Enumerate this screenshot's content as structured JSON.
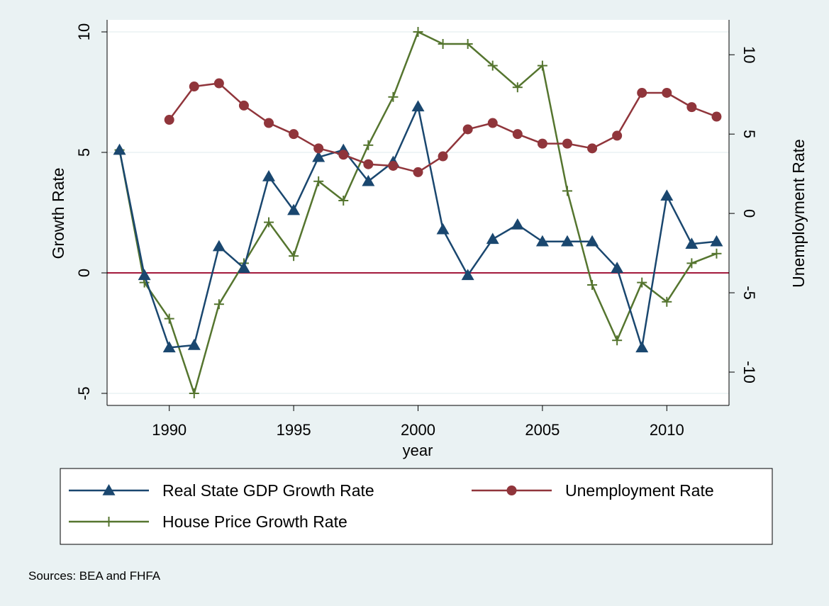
{
  "chart_data": {
    "type": "line",
    "xlabel": "year",
    "ylabel_left": "Growth Rate",
    "ylabel_right": "Unemployment Rate",
    "xlim": [
      1987.5,
      2012.5
    ],
    "ylim_left": [
      -5.5,
      10.5
    ],
    "ylim_right": [
      -12.1,
      12.2
    ],
    "x_ticks": [
      1990,
      1995,
      2000,
      2005,
      2010
    ],
    "y_ticks_left": [
      -5,
      0,
      5,
      10
    ],
    "y_ticks_right": [
      -10,
      -5,
      0,
      5,
      10
    ],
    "grid": true,
    "reference_line_y": 0,
    "legend_position": "bottom",
    "note": "Sources: BEA and FHFA",
    "series": [
      {
        "name": "Real State GDP Growth Rate",
        "axis": "left",
        "marker": "triangle",
        "color": "#1a476f",
        "x": [
          1988,
          1989,
          1990,
          1991,
          1992,
          1993,
          1994,
          1995,
          1996,
          1997,
          1998,
          1999,
          2000,
          2001,
          2002,
          2003,
          2004,
          2005,
          2006,
          2007,
          2008,
          2009,
          2010,
          2011,
          2012
        ],
        "values": [
          5.1,
          -0.1,
          -3.1,
          -3.0,
          1.1,
          0.2,
          4.0,
          2.6,
          4.8,
          5.1,
          3.8,
          4.6,
          6.9,
          1.8,
          -0.1,
          1.4,
          2.0,
          1.3,
          1.3,
          1.3,
          0.2,
          -3.1,
          3.2,
          1.2,
          1.3
        ]
      },
      {
        "name": "Unemployment Rate",
        "axis": "right",
        "marker": "circle",
        "color": "#90353b",
        "x": [
          1990,
          1991,
          1992,
          1993,
          1994,
          1995,
          1996,
          1997,
          1998,
          1999,
          2000,
          2001,
          2002,
          2003,
          2004,
          2005,
          2006,
          2007,
          2008,
          2009,
          2010,
          2011,
          2012
        ],
        "values": [
          5.9,
          8.0,
          8.2,
          6.8,
          5.7,
          5.0,
          4.1,
          3.7,
          3.1,
          3.0,
          2.6,
          3.6,
          5.3,
          5.7,
          5.0,
          4.4,
          4.4,
          4.1,
          4.9,
          7.6,
          7.6,
          6.7,
          6.1
        ]
      },
      {
        "name": "House Price Growth Rate",
        "axis": "left",
        "marker": "plus",
        "color": "#55752f",
        "x": [
          1988,
          1989,
          1990,
          1991,
          1992,
          1993,
          1994,
          1995,
          1996,
          1997,
          1998,
          1999,
          2000,
          2001,
          2002,
          2003,
          2004,
          2005,
          2006,
          2007,
          2008,
          2009,
          2010,
          2011,
          2012
        ],
        "values": [
          5.1,
          -0.4,
          -1.9,
          -5.0,
          -1.3,
          0.4,
          2.1,
          0.7,
          3.8,
          3.0,
          5.3,
          7.3,
          10.0,
          9.5,
          9.5,
          8.6,
          7.7,
          8.6,
          3.4,
          -0.5,
          -2.8,
          -0.4,
          -1.2,
          0.4,
          0.8
        ]
      }
    ]
  }
}
